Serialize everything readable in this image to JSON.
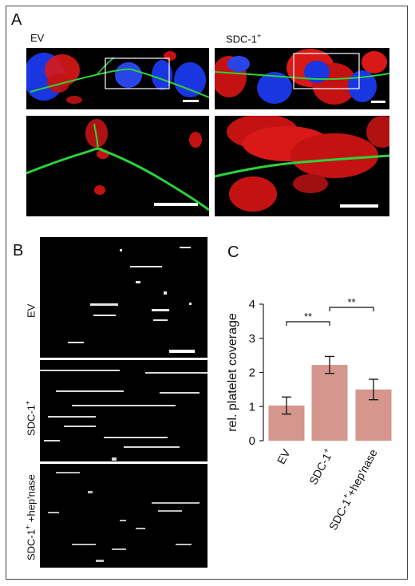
{
  "panels": {
    "a": {
      "letter": "A",
      "left_label": "EV",
      "right_label_base": "SDC-1",
      "right_label_sup": "+"
    },
    "b": {
      "letter": "B",
      "rows": [
        {
          "base": "EV",
          "sup": "",
          "tail": ""
        },
        {
          "base": "SDC-1",
          "sup": "+",
          "tail": ""
        },
        {
          "base": "SDC-1",
          "sup": "+",
          "tail": " +hep'nase"
        }
      ]
    },
    "c": {
      "letter": "C"
    }
  },
  "colors": {
    "nuclei": "#1a36e0",
    "fibers": "#2bd33a",
    "cells_red": "#e01515",
    "bar_fill": "#d4968d",
    "platelet_white": "#ffffff"
  },
  "chart_data": {
    "type": "bar",
    "categories": [
      "EV",
      "SDC-1+",
      "SDC-1+ +hep'nase"
    ],
    "category_labels": [
      {
        "base": "EV",
        "sup": "",
        "tail": ""
      },
      {
        "base": "SDC-1",
        "sup": "+",
        "tail": ""
      },
      {
        "base": "SDC-1",
        "sup": "+",
        "tail": "+hep'nase"
      }
    ],
    "values": [
      1.03,
      2.22,
      1.5
    ],
    "errors": [
      0.25,
      0.25,
      0.3
    ],
    "ylabel": "rel. platelet coverage",
    "ylim": [
      0,
      4
    ],
    "yticks": [
      "0",
      "1",
      "2",
      "3",
      "4"
    ],
    "significance": [
      {
        "from": 0,
        "to": 1,
        "label": "**"
      },
      {
        "from": 1,
        "to": 2,
        "label": "**"
      }
    ],
    "grid": false
  }
}
